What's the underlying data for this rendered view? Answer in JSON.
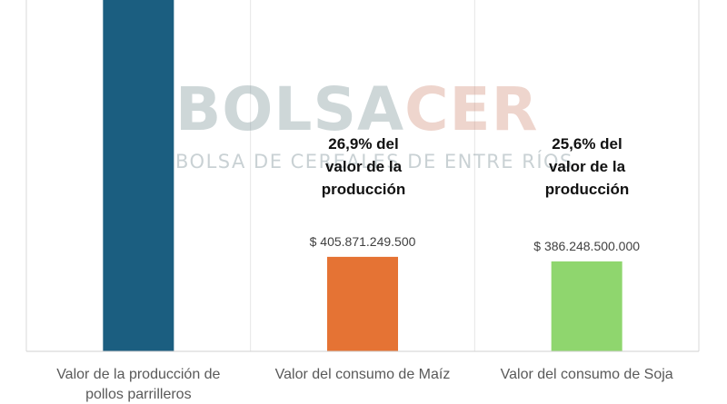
{
  "watermark": {
    "brand_part1": "BOLSA",
    "brand_part2": "CER",
    "subtitle": "BOLSA DE CEREALES DE ENTRE RÍOS"
  },
  "chart_data": {
    "type": "bar",
    "categories": [
      [
        "Valor de la producción de",
        "pollos parrilleros"
      ],
      [
        "Valor del consumo de Maíz"
      ],
      [
        "Valor del consumo de Soja"
      ]
    ],
    "values": [
      1508814682900,
      405871249500,
      386248500000
    ],
    "data_labels": [
      "",
      "$ 405.871.249.500",
      "$ 386.248.500.000"
    ],
    "colors": [
      "#1b5e80",
      "#e57334",
      "#8fd66e"
    ],
    "ylim": [
      0,
      1508814682900
    ],
    "grid": false,
    "legend": "none"
  },
  "annotations": [
    {
      "lines": [
        "26,9% del",
        "valor de la",
        "producción"
      ]
    },
    {
      "lines": [
        "25,6% del",
        "valor de la",
        "producción"
      ]
    }
  ]
}
